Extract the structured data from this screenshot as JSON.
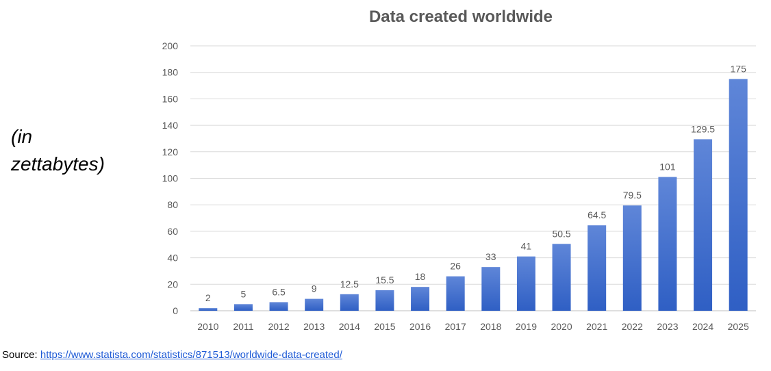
{
  "chart_data": {
    "type": "bar",
    "title": "Data created worldwide",
    "ylabel": "(in\nzettabytes)",
    "xlabel": "",
    "categories": [
      "2010",
      "2011",
      "2012",
      "2013",
      "2014",
      "2015",
      "2016",
      "2017",
      "2018",
      "2019",
      "2020",
      "2021",
      "2022",
      "2023",
      "2024",
      "2025"
    ],
    "values": [
      2,
      5,
      6.5,
      9,
      12.5,
      15.5,
      18,
      26,
      33,
      41,
      50.5,
      64.5,
      79.5,
      101,
      129.5,
      175
    ],
    "ylim": [
      0,
      200
    ],
    "yticks": [
      0,
      20,
      40,
      60,
      80,
      100,
      120,
      140,
      160,
      180,
      200
    ],
    "grid": true,
    "legend": "none",
    "colors": {
      "bar_top": "#5f86d8",
      "bar_bottom": "#2f5fc4",
      "grid": "#d9d9d9",
      "text": "#595959"
    }
  },
  "source": {
    "prefix": "Source: ",
    "link_text": "https://www.statista.com/statistics/871513/worldwide-data-created/"
  }
}
